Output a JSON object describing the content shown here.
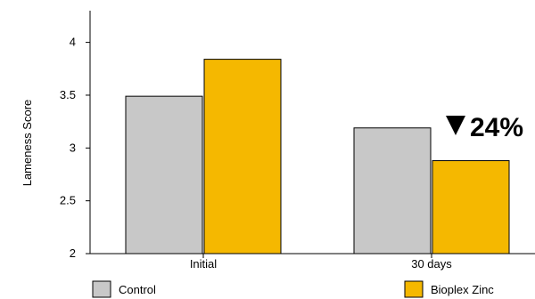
{
  "chart_data": {
    "type": "bar",
    "title": "",
    "xlabel": "",
    "ylabel": "Lameness Score",
    "ylim": [
      2,
      4.3
    ],
    "yticks": [
      2,
      2.5,
      3,
      3.5,
      4
    ],
    "ytick_labels": [
      "2",
      "2.5",
      "3",
      "3.5",
      "4"
    ],
    "categories": [
      "Initial",
      "30 days"
    ],
    "series": [
      {
        "name": "Control",
        "color": "#c8c8c8",
        "values": [
          3.49,
          3.19
        ]
      },
      {
        "name": "Bioplex Zinc",
        "color": "#f5b800",
        "values": [
          3.84,
          2.88
        ]
      }
    ],
    "grid": false,
    "legend_position": "bottom",
    "annotations": [
      {
        "text": "24%",
        "marker": "down-triangle",
        "category": "30 days"
      }
    ]
  }
}
